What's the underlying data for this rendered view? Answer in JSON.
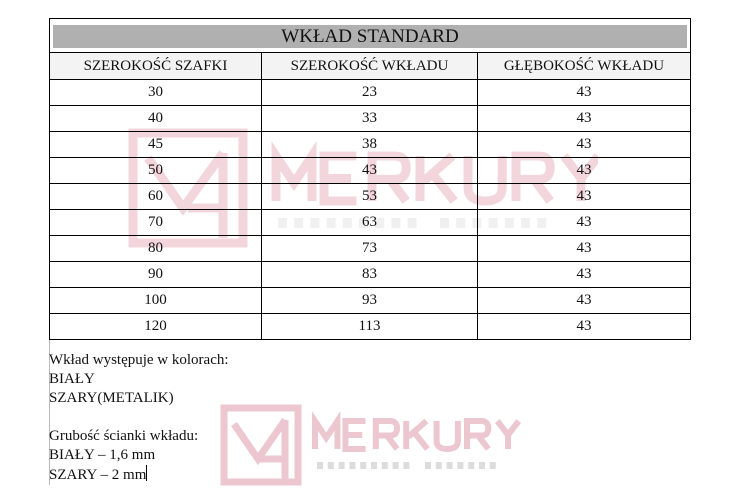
{
  "table": {
    "title": "WKŁAD STANDARD",
    "headers": [
      "SZEROKOŚĆ SZAFKI",
      "SZEROKOŚĆ WKŁADU",
      "GŁĘBOKOŚĆ WKŁADU"
    ],
    "rows": [
      [
        "30",
        "23",
        "43"
      ],
      [
        "40",
        "33",
        "43"
      ],
      [
        "45",
        "38",
        "43"
      ],
      [
        "50",
        "43",
        "43"
      ],
      [
        "60",
        "53",
        "43"
      ],
      [
        "70",
        "63",
        "43"
      ],
      [
        "80",
        "73",
        "43"
      ],
      [
        "90",
        "83",
        "43"
      ],
      [
        "100",
        "93",
        "43"
      ],
      [
        "120",
        "113",
        "43"
      ]
    ]
  },
  "notes": {
    "colors_heading": "Wkład występuje w kolorach:",
    "color1": "BIAŁY",
    "color2": "SZARY(METALIK)",
    "thickness_heading": "Grubość ścianki wkładu:",
    "thickness1": "BIAŁY – 1,6 mm",
    "thickness2": "SZARY – 2 mm"
  },
  "watermark": {
    "brand": "MERKURY",
    "tagline": "AKCESORIA MEBLOWE",
    "color": "#e8c3cc"
  }
}
